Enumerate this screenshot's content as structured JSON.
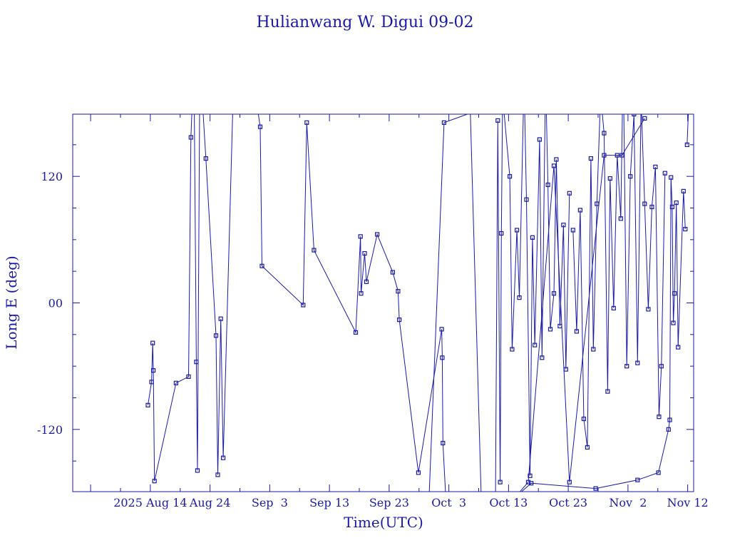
{
  "chart_data": {
    "type": "line",
    "title": "Hulianwang W. Digui 09-02",
    "xlabel": "Time(UTC)",
    "ylabel": "Long E (deg)",
    "ylim": [
      -179,
      179
    ],
    "yticks": [
      -120,
      0,
      120
    ],
    "ytick_labels": [
      "-120",
      "00",
      "120"
    ],
    "x_axis": {
      "unit": "days after 2025 Aug 4 00:00 UTC",
      "range": [
        -3,
        101
      ],
      "ticks": [
        {
          "x": 10,
          "label": "2025 Aug 14"
        },
        {
          "x": 20,
          "label": "Aug 24"
        },
        {
          "x": 30,
          "label": "Sep  3"
        },
        {
          "x": 40,
          "label": "Sep 13"
        },
        {
          "x": 50,
          "label": "Sep 23"
        },
        {
          "x": 60,
          "label": "Oct  3"
        },
        {
          "x": 70,
          "label": "Oct 13"
        },
        {
          "x": 80,
          "label": "Oct 23"
        },
        {
          "x": 90,
          "label": "Nov  2"
        },
        {
          "x": 100,
          "label": "Nov 12"
        }
      ]
    },
    "grid": false,
    "marker": "square",
    "color": "#1a1aa6",
    "series": [
      {
        "name": "",
        "points": [
          [
            9.6,
            -97
          ],
          [
            10.2,
            -75
          ],
          [
            10.4,
            -38
          ],
          [
            10.5,
            -64
          ],
          [
            10.7,
            -169
          ],
          [
            14.3,
            -76
          ],
          [
            16.4,
            -70
          ],
          [
            16.8,
            157
          ],
          [
            17.3,
            230
          ],
          [
            17.7,
            -56
          ],
          [
            17.9,
            -159
          ],
          [
            18.3,
            230
          ],
          [
            19.3,
            137
          ],
          [
            21.0,
            -31
          ],
          [
            21.3,
            -163
          ],
          [
            21.8,
            -15
          ],
          [
            22.2,
            -147
          ],
          [
            24.0,
            222
          ],
          [
            26.8,
            228
          ],
          [
            28.4,
            167
          ],
          [
            28.7,
            35
          ],
          [
            35.6,
            -2
          ],
          [
            36.2,
            171
          ],
          [
            37.4,
            50
          ],
          [
            44.4,
            -28
          ],
          [
            45.2,
            63
          ],
          [
            45.3,
            9
          ],
          [
            45.9,
            47
          ],
          [
            46.2,
            20
          ],
          [
            48.0,
            65
          ],
          [
            50.6,
            29
          ],
          [
            51.5,
            11
          ],
          [
            51.7,
            -16
          ],
          [
            54.9,
            -161
          ],
          [
            58.8,
            -25
          ],
          [
            58.9,
            -52
          ],
          [
            59.0,
            -133
          ],
          [
            60.0,
            -240
          ]
        ]
      },
      {
        "name": "",
        "points": [
          [
            56.3,
            -240
          ],
          [
            59.2,
            171
          ],
          [
            63.6,
            180
          ],
          [
            65.6,
            -220
          ],
          [
            73.3,
            -170
          ],
          [
            77.6,
            130
          ],
          [
            80.2,
            -170
          ],
          [
            86.0,
            140
          ],
          [
            89.0,
            140
          ],
          [
            92.8,
            175
          ]
        ]
      },
      {
        "name": "",
        "points": [
          [
            60.6,
            -236
          ],
          [
            73.8,
            -171
          ],
          [
            84.6,
            -176
          ],
          [
            91.6,
            -168
          ],
          [
            95.1,
            -161
          ],
          [
            96.8,
            -120
          ],
          [
            97.0,
            -111
          ],
          [
            97.2,
            119
          ],
          [
            97.4,
            91
          ],
          [
            97.6,
            -19
          ],
          [
            97.8,
            9
          ],
          [
            98.1,
            95
          ],
          [
            98.4,
            -42
          ],
          [
            99.3,
            106
          ],
          [
            99.6,
            70
          ]
        ]
      },
      {
        "name": "",
        "points": [
          [
            67.8,
            -190
          ],
          [
            68.2,
            173
          ],
          [
            68.6,
            -170
          ],
          [
            68.8,
            66
          ],
          [
            69.0,
            196
          ],
          [
            70.2,
            120
          ],
          [
            70.6,
            -44
          ],
          [
            71.4,
            69
          ],
          [
            71.8,
            5
          ],
          [
            72.6,
            212
          ],
          [
            73.0,
            98
          ],
          [
            73.6,
            -164
          ],
          [
            74.0,
            62
          ],
          [
            74.4,
            -40
          ],
          [
            75.2,
            155
          ],
          [
            75.6,
            -52
          ],
          [
            76.2,
            216
          ],
          [
            76.6,
            112
          ],
          [
            77.0,
            -25
          ],
          [
            77.6,
            9
          ],
          [
            78.0,
            136
          ],
          [
            78.6,
            -22
          ],
          [
            79.2,
            74
          ],
          [
            79.6,
            -63
          ],
          [
            80.2,
            104
          ]
        ]
      },
      {
        "name": "",
        "points": [
          [
            80.8,
            69
          ],
          [
            81.4,
            -27
          ],
          [
            82.0,
            88
          ],
          [
            82.6,
            -110
          ],
          [
            83.2,
            -137
          ],
          [
            83.8,
            137
          ],
          [
            84.2,
            -44
          ],
          [
            84.8,
            94
          ],
          [
            85.4,
            197
          ],
          [
            86.0,
            161
          ],
          [
            86.6,
            -84
          ],
          [
            87.0,
            118
          ],
          [
            87.6,
            -5
          ],
          [
            88.2,
            140
          ],
          [
            88.8,
            80
          ],
          [
            89.2,
            233
          ],
          [
            89.8,
            -60
          ],
          [
            90.4,
            120
          ],
          [
            91.0,
            179
          ],
          [
            91.6,
            -57
          ],
          [
            92.2,
            192
          ],
          [
            92.8,
            94
          ],
          [
            93.4,
            -6
          ],
          [
            94.0,
            91
          ],
          [
            94.6,
            129
          ],
          [
            95.2,
            -108
          ],
          [
            95.6,
            -60
          ],
          [
            96.2,
            123
          ]
        ]
      },
      {
        "name": "",
        "points": [
          [
            99.9,
            150
          ],
          [
            100.4,
            220
          ]
        ]
      }
    ]
  }
}
